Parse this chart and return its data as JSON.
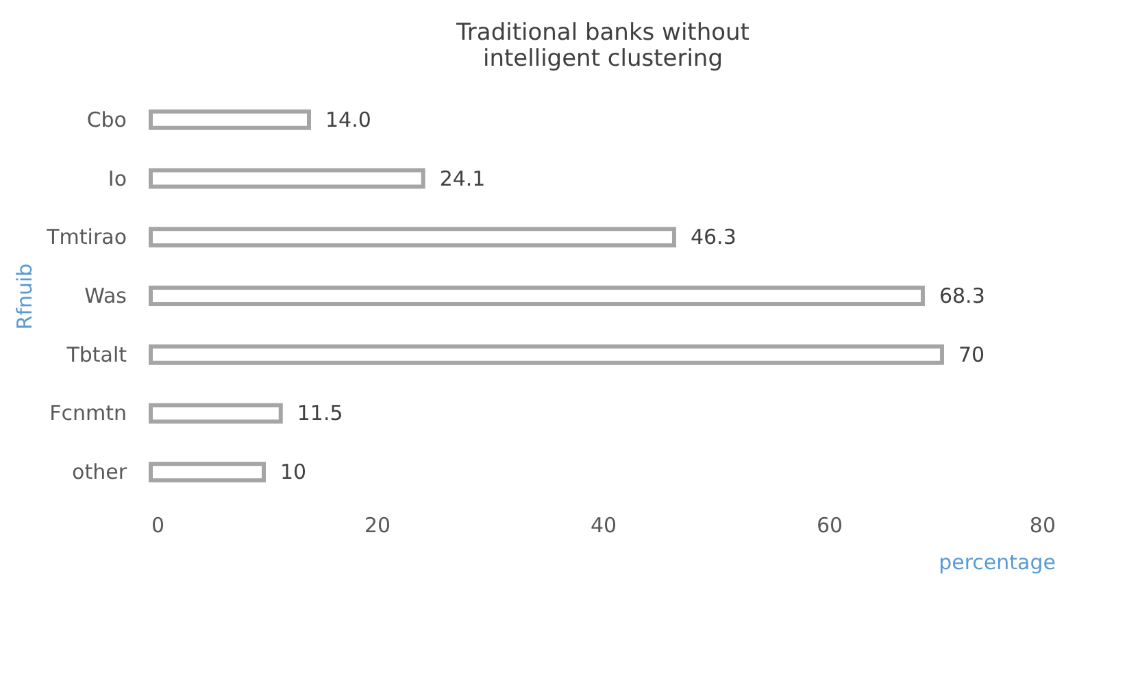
{
  "chart_data": {
    "type": "bar",
    "orientation": "horizontal",
    "title": "Traditional banks without intelligent clustering",
    "xlabel": "percentage",
    "ylabel": "Rfnuib",
    "categories": [
      "Cbo",
      "Io",
      "Tmtirao",
      "Was",
      "Tbtalt",
      "Fcnmtn",
      "other"
    ],
    "values": [
      14.0,
      24.1,
      46.3,
      68.3,
      70,
      11.5,
      10
    ],
    "value_labels": [
      "14.0",
      "24.1",
      "46.3",
      "68.3",
      "70",
      "11.5",
      "10"
    ],
    "color": "#a5a5a5",
    "xlim": [
      0,
      80
    ],
    "xticks": [
      0,
      20,
      40,
      60,
      80
    ],
    "grid": false
  }
}
